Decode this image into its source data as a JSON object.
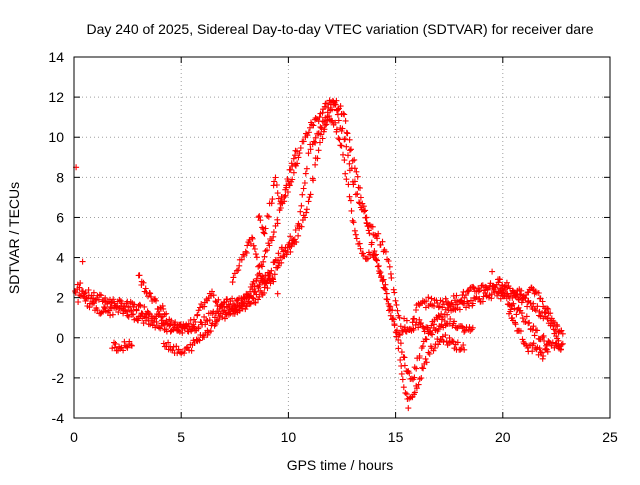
{
  "chart_data": {
    "type": "scatter",
    "title": "Day 240 of 2025, Sidereal Day-to-day VTEC variation (SDTVAR) for receiver dare",
    "xlabel": "GPS time / hours",
    "ylabel": "SDTVAR / TECUs",
    "xlim": [
      0,
      25
    ],
    "ylim": [
      -4,
      14
    ],
    "xticks": [
      0,
      5,
      10,
      15,
      20,
      25
    ],
    "yticks": [
      -4,
      -2,
      0,
      2,
      4,
      6,
      8,
      10,
      12,
      14
    ],
    "grid": true,
    "marker": "+",
    "color": "#ff0000",
    "series": [
      {
        "name": "SDTVAR",
        "tracks": [
          [
            [
              0.05,
              2.3
            ],
            [
              0.3,
              2.6
            ],
            [
              0.6,
              2.2
            ],
            [
              1.0,
              2.0
            ],
            [
              1.5,
              1.9
            ],
            [
              2.0,
              1.7
            ],
            [
              2.5,
              1.6
            ],
            [
              3.0,
              1.5
            ],
            [
              3.5,
              1.3
            ],
            [
              4.0,
              1.0
            ],
            [
              4.5,
              0.7
            ],
            [
              5.0,
              0.4
            ],
            [
              5.5,
              0.7
            ],
            [
              6.0,
              1.6
            ],
            [
              6.4,
              2.3
            ],
            [
              6.7,
              1.8
            ],
            [
              7.2,
              1.7
            ],
            [
              7.6,
              1.8
            ],
            [
              8.2,
              2.2
            ],
            [
              8.6,
              3.2
            ],
            [
              9.0,
              4.5
            ],
            [
              9.4,
              5.5
            ],
            [
              9.8,
              7.0
            ],
            [
              10.2,
              8.0
            ],
            [
              10.6,
              9.5
            ],
            [
              11.0,
              10.5
            ],
            [
              11.4,
              11.0
            ],
            [
              11.7,
              11.5
            ],
            [
              12.0,
              11.8
            ],
            [
              12.2,
              11.5
            ],
            [
              12.6,
              10.0
            ],
            [
              13.0,
              8.0
            ],
            [
              13.4,
              6.5
            ],
            [
              13.8,
              5.5
            ],
            [
              14.2,
              5.0
            ],
            [
              14.6,
              4.0
            ],
            [
              15.0,
              2.0
            ],
            [
              15.3,
              0.5
            ],
            [
              15.6,
              0.2
            ],
            [
              16.0,
              1.5
            ],
            [
              16.5,
              1.8
            ],
            [
              17.0,
              1.7
            ],
            [
              17.5,
              1.8
            ],
            [
              18.0,
              2.0
            ],
            [
              18.5,
              2.3
            ],
            [
              19.0,
              2.5
            ],
            [
              19.5,
              2.6
            ],
            [
              20.0,
              2.8
            ],
            [
              20.5,
              2.3
            ],
            [
              21.0,
              1.8
            ],
            [
              21.5,
              1.5
            ],
            [
              22.0,
              1.0
            ],
            [
              22.5,
              0.5
            ],
            [
              22.8,
              0.2
            ]
          ],
          [
            [
              0.2,
              2.0
            ],
            [
              0.6,
              1.8
            ],
            [
              1.0,
              1.5
            ],
            [
              1.5,
              1.3
            ],
            [
              2.0,
              1.4
            ],
            [
              2.5,
              1.3
            ],
            [
              3.0,
              1.0
            ],
            [
              3.5,
              0.8
            ],
            [
              4.0,
              0.6
            ],
            [
              4.5,
              0.5
            ],
            [
              5.0,
              0.5
            ],
            [
              5.5,
              0.4
            ],
            [
              6.0,
              0.8
            ],
            [
              6.5,
              1.2
            ],
            [
              7.0,
              1.5
            ],
            [
              7.5,
              1.3
            ],
            [
              8.0,
              1.8
            ],
            [
              8.5,
              2.5
            ],
            [
              9.0,
              3.0
            ],
            [
              9.5,
              4.0
            ],
            [
              10.0,
              4.8
            ],
            [
              10.3,
              5.0
            ],
            [
              10.6,
              6.5
            ],
            [
              11.0,
              9.5
            ],
            [
              11.5,
              10.5
            ],
            [
              12.0,
              11.0
            ],
            [
              12.5,
              9.5
            ],
            [
              13.0,
              6.0
            ],
            [
              13.3,
              4.5
            ],
            [
              13.6,
              4.0
            ],
            [
              14.0,
              4.2
            ],
            [
              14.4,
              3.0
            ],
            [
              14.8,
              1.0
            ],
            [
              15.2,
              0.0
            ],
            [
              15.5,
              -1.5
            ],
            [
              15.8,
              -2.0
            ],
            [
              16.2,
              -0.5
            ],
            [
              16.6,
              0.5
            ],
            [
              17.0,
              1.0
            ],
            [
              17.5,
              1.4
            ],
            [
              18.0,
              1.6
            ],
            [
              18.5,
              1.8
            ],
            [
              19.0,
              2.0
            ],
            [
              19.5,
              2.2
            ],
            [
              20.0,
              2.0
            ],
            [
              20.5,
              1.5
            ],
            [
              21.0,
              1.0
            ],
            [
              21.5,
              0.3
            ],
            [
              22.0,
              -0.2
            ],
            [
              22.5,
              -0.5
            ],
            [
              22.8,
              -0.3
            ]
          ],
          [
            [
              1.8,
              -0.3
            ],
            [
              2.1,
              -0.5
            ],
            [
              2.4,
              -0.4
            ],
            [
              2.7,
              -0.4
            ]
          ],
          [
            [
              4.2,
              -0.2
            ],
            [
              4.6,
              -0.5
            ],
            [
              5.0,
              -0.8
            ],
            [
              5.3,
              -0.6
            ],
            [
              5.7,
              -0.2
            ],
            [
              6.2,
              0.3
            ],
            [
              6.7,
              0.9
            ],
            [
              7.2,
              1.3
            ],
            [
              7.7,
              1.5
            ],
            [
              8.3,
              1.8
            ],
            [
              8.8,
              2.3
            ],
            [
              9.3,
              3.0
            ],
            [
              9.7,
              4.0
            ],
            [
              10.2,
              4.6
            ],
            [
              10.6,
              5.5
            ],
            [
              11.0,
              7.0
            ],
            [
              11.4,
              9.5
            ],
            [
              11.8,
              11.0
            ],
            [
              12.2,
              11.8
            ],
            [
              12.6,
              11.0
            ],
            [
              13.0,
              9.0
            ],
            [
              13.4,
              7.0
            ],
            [
              13.8,
              5.0
            ],
            [
              14.2,
              3.5
            ],
            [
              14.6,
              2.0
            ],
            [
              15.0,
              0.5
            ],
            [
              15.2,
              -1.0
            ],
            [
              15.4,
              -2.5
            ],
            [
              15.6,
              -3.3
            ],
            [
              15.9,
              -2.8
            ],
            [
              16.3,
              -1.5
            ],
            [
              16.7,
              -0.5
            ],
            [
              17.2,
              0.0
            ],
            [
              17.7,
              -0.3
            ],
            [
              18.2,
              -0.6
            ]
          ],
          [
            [
              3.0,
              3.0
            ],
            [
              3.3,
              2.5
            ],
            [
              3.6,
              2.0
            ],
            [
              4.0,
              1.5
            ],
            [
              4.3,
              1.2
            ]
          ],
          [
            [
              8.6,
              6.0
            ],
            [
              8.9,
              5.3
            ],
            [
              9.2,
              6.8
            ],
            [
              9.4,
              8.0
            ],
            [
              9.6,
              6.5
            ],
            [
              9.9,
              7.5
            ],
            [
              10.1,
              8.5
            ],
            [
              10.4,
              9.3
            ]
          ],
          [
            [
              7.4,
              2.9
            ],
            [
              7.7,
              3.6
            ],
            [
              8.0,
              4.2
            ],
            [
              8.3,
              5.0
            ],
            [
              8.5,
              4.0
            ],
            [
              8.7,
              3.2
            ],
            [
              8.9,
              2.6
            ],
            [
              9.1,
              3.3
            ],
            [
              9.3,
              2.8
            ]
          ],
          [
            [
              15.4,
              0.8
            ],
            [
              15.8,
              0.4
            ],
            [
              16.2,
              0.8
            ],
            [
              16.6,
              0.2
            ],
            [
              17.0,
              0.4
            ],
            [
              17.4,
              0.9
            ],
            [
              17.8,
              0.6
            ],
            [
              18.2,
              0.3
            ],
            [
              18.6,
              0.5
            ]
          ],
          [
            [
              19.8,
              2.6
            ],
            [
              20.1,
              2.2
            ],
            [
              20.4,
              1.8
            ],
            [
              20.7,
              2.5
            ],
            [
              21.0,
              2.0
            ],
            [
              21.3,
              2.6
            ],
            [
              21.6,
              2.2
            ],
            [
              21.9,
              1.6
            ],
            [
              22.2,
              1.2
            ],
            [
              22.5,
              0.0
            ],
            [
              22.7,
              -0.6
            ]
          ],
          [
            [
              20.3,
              1.2
            ],
            [
              20.6,
              0.6
            ],
            [
              20.9,
              0.0
            ],
            [
              21.2,
              -0.6
            ],
            [
              21.5,
              -0.4
            ],
            [
              21.8,
              -0.9
            ],
            [
              22.1,
              -0.7
            ]
          ]
        ]
      }
    ],
    "isolated_points": [
      [
        0.1,
        8.5
      ],
      [
        0.4,
        3.8
      ],
      [
        19.5,
        3.3
      ],
      [
        9.5,
        2.2
      ]
    ]
  }
}
